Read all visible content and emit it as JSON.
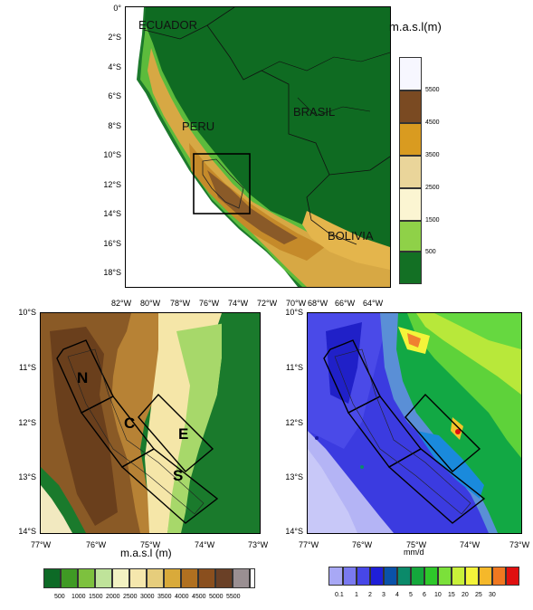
{
  "top_map": {
    "lat_ticks": [
      "0°",
      "2°S",
      "4°S",
      "6°S",
      "8°S",
      "10°S",
      "12°S",
      "14°S",
      "16°S",
      "18°S"
    ],
    "lon_ticks": [
      "82°W",
      "80°W",
      "78°W",
      "76°W",
      "74°W",
      "72°W",
      "70°W",
      "68°W",
      "66°W",
      "64°W"
    ],
    "countries": {
      "ecuador": "ECUADOR",
      "peru": "PERU",
      "brasil": "BRASIL",
      "bolivia": "BOLIVIA"
    },
    "unit_label": "m.a.s.l(m)",
    "colorbar_labels": [
      "5500",
      "4500",
      "3500",
      "2500",
      "1500",
      "500"
    ],
    "colors": [
      "#f7f7ff",
      "#7a4a22",
      "#d99b20",
      "#ead59a",
      "#fbf5d2",
      "#8fd148",
      "#137024"
    ]
  },
  "bottom_left_map": {
    "lat_ticks": [
      "10°S",
      "11°S",
      "12°S",
      "13°S",
      "14°S"
    ],
    "lon_ticks": [
      "77°W",
      "76°W",
      "75°W",
      "74°W",
      "73°W"
    ],
    "regions": [
      "N",
      "C",
      "E",
      "S"
    ],
    "unit_label": "m.a.s.l (m)",
    "colorbar_labels": [
      "500",
      "1000",
      "1500",
      "2000",
      "2500",
      "3000",
      "3500",
      "4000",
      "4500",
      "5000",
      "5500"
    ],
    "colorbar_colors": [
      "#0d6a26",
      "#3f9a24",
      "#7dc13e",
      "#bfe39a",
      "#f2f2c2",
      "#f5e7ad",
      "#e6cd7c",
      "#d9aa3a",
      "#b07020",
      "#8a4f1e",
      "#6a4026",
      "#9a8f92",
      "#ffffff"
    ]
  },
  "bottom_right_map": {
    "lat_ticks": [
      "10°S",
      "11°S",
      "12°S",
      "13°S",
      "14°S"
    ],
    "lon_ticks": [
      "77°W",
      "76°W",
      "75°W",
      "74°W",
      "73°W"
    ],
    "unit_label": "mm/d",
    "colorbar_labels": [
      "0.1",
      "1",
      "2",
      "3",
      "4",
      "5",
      "6",
      "10",
      "15",
      "20",
      "25",
      "30"
    ],
    "colorbar_colors": [
      "#a8a8f5",
      "#7a7af0",
      "#4747e8",
      "#1f1fd8",
      "#0a52a8",
      "#0b8a6a",
      "#14a83c",
      "#2ec82a",
      "#7be03a",
      "#c8f03a",
      "#f4f43a",
      "#f5b82a",
      "#f07820",
      "#e01010"
    ]
  }
}
